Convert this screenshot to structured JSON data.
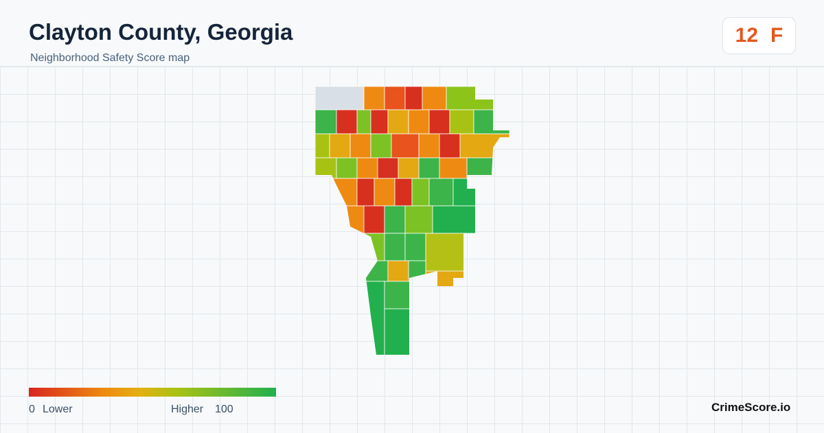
{
  "header": {
    "title": "Clayton County, Georgia",
    "subtitle": "Neighborhood Safety Score map"
  },
  "score": {
    "value": "12",
    "grade": "F"
  },
  "legend": {
    "min": "0",
    "min_label": "Lower",
    "max_label": "Higher",
    "max": "100"
  },
  "brand": "CrimeScore.io"
}
